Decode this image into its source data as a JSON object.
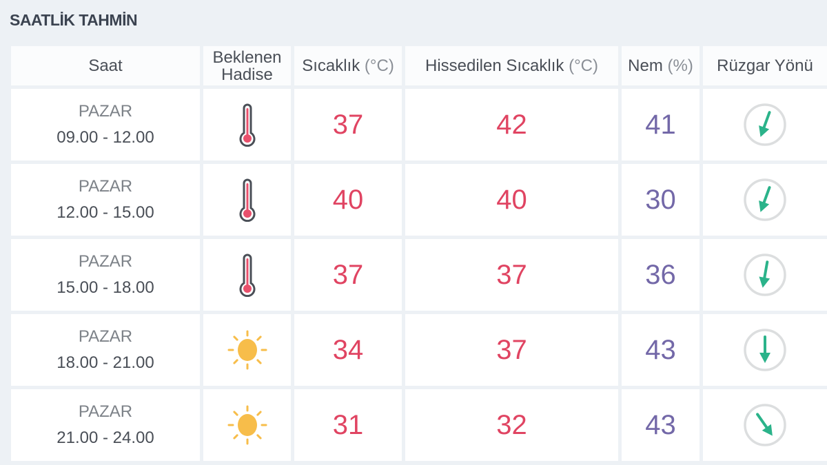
{
  "title": "SAATLİK TAHMİN",
  "headers": {
    "time": "Saat",
    "event_line1": "Beklenen",
    "event_line2": "Hadise",
    "temp": "Sıcaklık",
    "temp_unit": "(°C)",
    "feels": "Hissedilen Sıcaklık",
    "feels_unit": "(°C)",
    "humidity": "Nem",
    "humidity_unit": "(%)",
    "wind": "Rüzgar Yönü"
  },
  "colors": {
    "temp": "#e04462",
    "humidity": "#7368a8",
    "wind_arrow": "#2bb38a",
    "sun": "#f7bd4a"
  },
  "rows": [
    {
      "day": "PAZAR",
      "time": "09.00 - 12.00",
      "icon": "thermometer-icon",
      "temp": "37",
      "feels": "42",
      "humidity": "41",
      "wind_direction_deg": 20
    },
    {
      "day": "PAZAR",
      "time": "12.00 - 15.00",
      "icon": "thermometer-icon",
      "temp": "40",
      "feels": "40",
      "humidity": "30",
      "wind_direction_deg": 20
    },
    {
      "day": "PAZAR",
      "time": "15.00 - 18.00",
      "icon": "thermometer-icon",
      "temp": "37",
      "feels": "37",
      "humidity": "36",
      "wind_direction_deg": 10
    },
    {
      "day": "PAZAR",
      "time": "18.00 - 21.00",
      "icon": "sun-icon",
      "temp": "34",
      "feels": "37",
      "humidity": "43",
      "wind_direction_deg": 0
    },
    {
      "day": "PAZAR",
      "time": "21.00 - 24.00",
      "icon": "sun-icon",
      "temp": "31",
      "feels": "32",
      "humidity": "43",
      "wind_direction_deg": -35
    }
  ]
}
